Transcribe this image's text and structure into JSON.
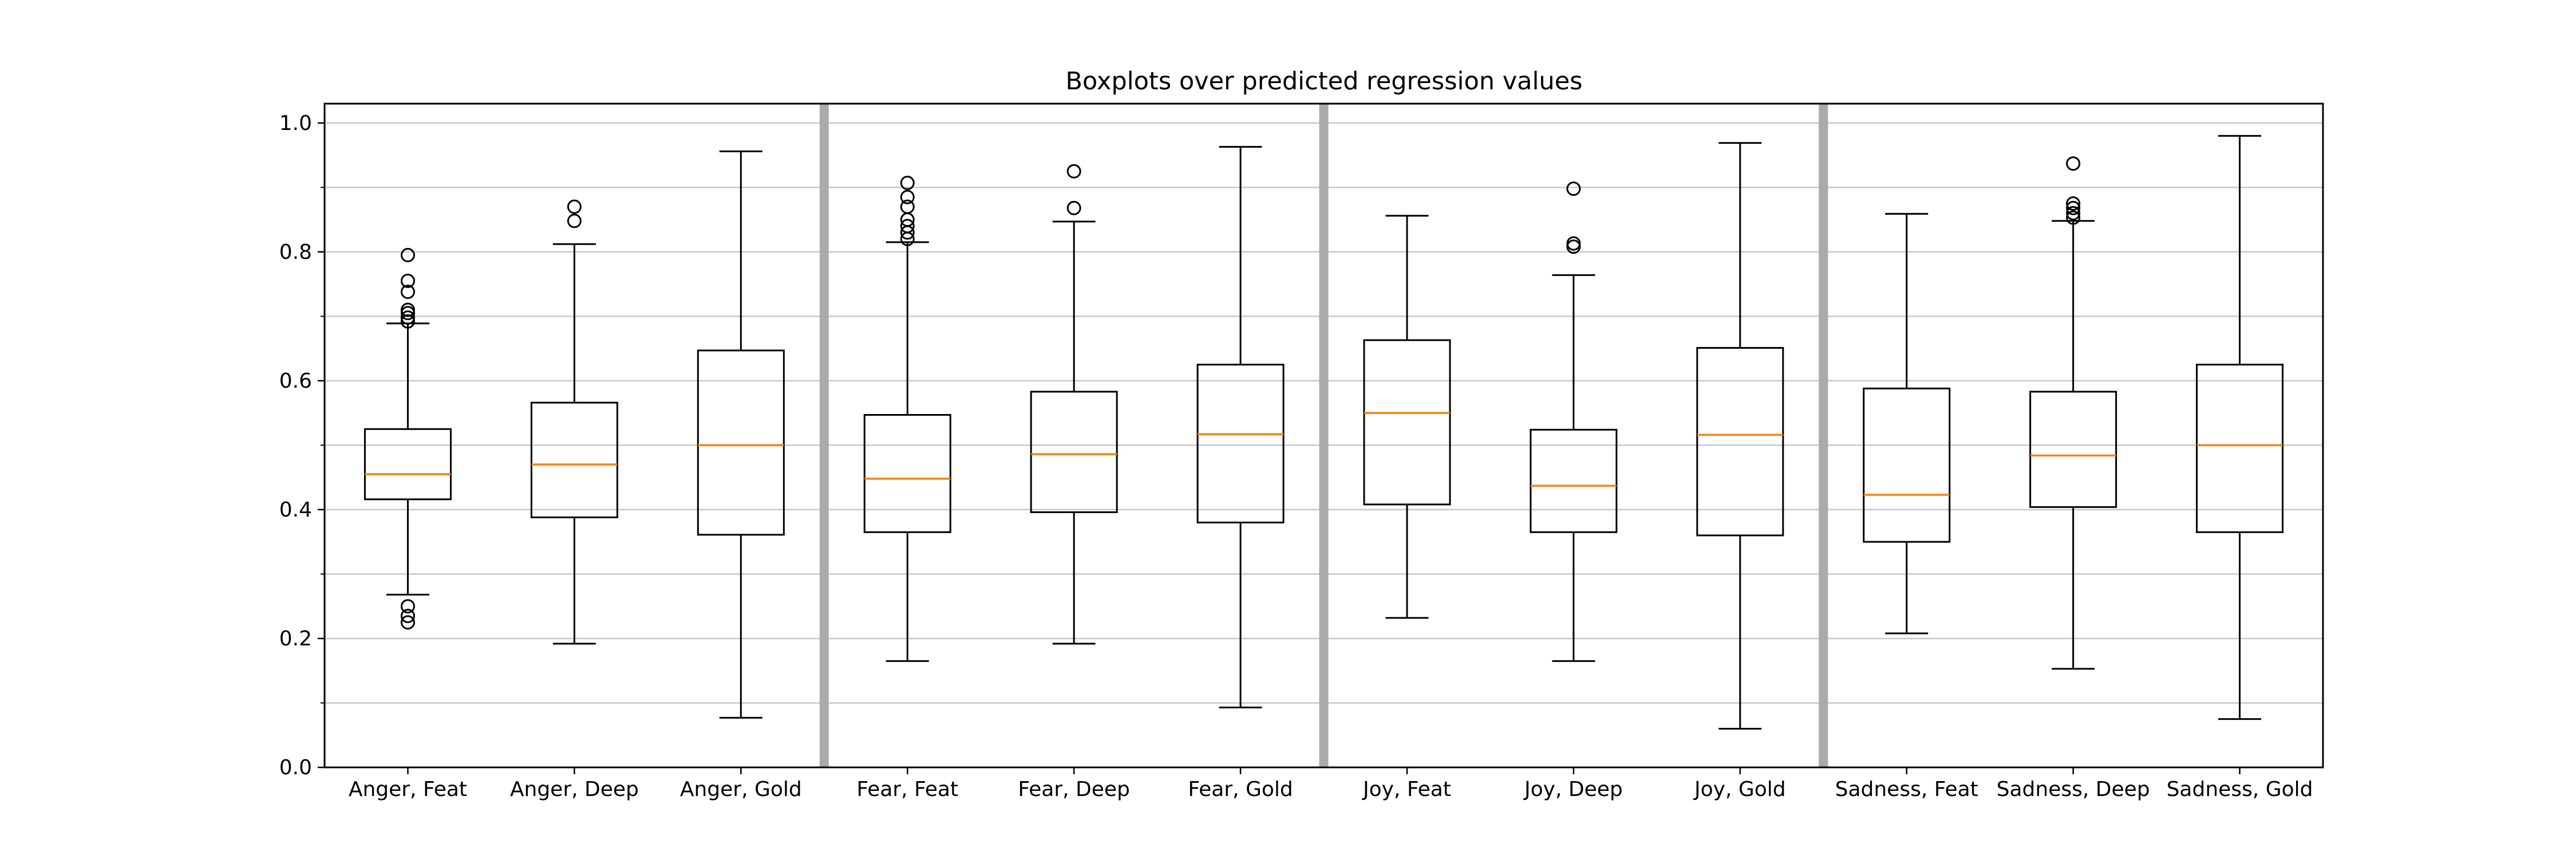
{
  "chart_data": {
    "type": "boxplot",
    "title": "Boxplots over predicted regression values",
    "xlabel": "",
    "ylabel": "",
    "ylim": [
      0.0,
      1.03
    ],
    "yticks": [
      "0.0",
      "0.2",
      "0.4",
      "0.6",
      "0.8",
      "1.0"
    ],
    "y_minor_grid": [
      0.1,
      0.3,
      0.5,
      0.7,
      0.9
    ],
    "grid": "horizontal",
    "group_separators_after": [
      3,
      6,
      9
    ],
    "colors": {
      "box": "#000000",
      "median": "#ff7f0e",
      "grid": "#c8c8c8",
      "separator": "#aaaaaa"
    },
    "categories": [
      "Anger, Feat",
      "Anger, Deep",
      "Anger, Gold",
      "Fear, Feat",
      "Fear, Deep",
      "Fear, Gold",
      "Joy, Feat",
      "Joy, Deep",
      "Joy, Gold",
      "Sadness, Feat",
      "Sadness, Deep",
      "Sadness, Gold"
    ],
    "boxes": [
      {
        "whislo": 0.268,
        "q1": 0.416,
        "med": 0.455,
        "q3": 0.525,
        "whishi": 0.689,
        "fliers": [
          0.225,
          0.235,
          0.25,
          0.692,
          0.698,
          0.705,
          0.71,
          0.738,
          0.755,
          0.795
        ]
      },
      {
        "whislo": 0.192,
        "q1": 0.388,
        "med": 0.47,
        "q3": 0.566,
        "whishi": 0.812,
        "fliers": [
          0.848,
          0.87
        ]
      },
      {
        "whislo": 0.077,
        "q1": 0.361,
        "med": 0.5,
        "q3": 0.647,
        "whishi": 0.956,
        "fliers": []
      },
      {
        "whislo": 0.165,
        "q1": 0.365,
        "med": 0.448,
        "q3": 0.547,
        "whishi": 0.815,
        "fliers": [
          0.82,
          0.83,
          0.84,
          0.85,
          0.87,
          0.885,
          0.907
        ]
      },
      {
        "whislo": 0.192,
        "q1": 0.396,
        "med": 0.486,
        "q3": 0.583,
        "whishi": 0.847,
        "fliers": [
          0.868,
          0.925
        ]
      },
      {
        "whislo": 0.093,
        "q1": 0.38,
        "med": 0.517,
        "q3": 0.625,
        "whishi": 0.963,
        "fliers": []
      },
      {
        "whislo": 0.232,
        "q1": 0.408,
        "med": 0.55,
        "q3": 0.663,
        "whishi": 0.856,
        "fliers": []
      },
      {
        "whislo": 0.165,
        "q1": 0.365,
        "med": 0.437,
        "q3": 0.524,
        "whishi": 0.764,
        "fliers": [
          0.808,
          0.813,
          0.898
        ]
      },
      {
        "whislo": 0.06,
        "q1": 0.36,
        "med": 0.516,
        "q3": 0.651,
        "whishi": 0.969,
        "fliers": []
      },
      {
        "whislo": 0.208,
        "q1": 0.35,
        "med": 0.423,
        "q3": 0.588,
        "whishi": 0.859,
        "fliers": []
      },
      {
        "whislo": 0.153,
        "q1": 0.404,
        "med": 0.484,
        "q3": 0.583,
        "whishi": 0.848,
        "fliers": [
          0.853,
          0.86,
          0.868,
          0.875,
          0.937
        ]
      },
      {
        "whislo": 0.075,
        "q1": 0.365,
        "med": 0.5,
        "q3": 0.625,
        "whishi": 0.98,
        "fliers": []
      }
    ]
  }
}
